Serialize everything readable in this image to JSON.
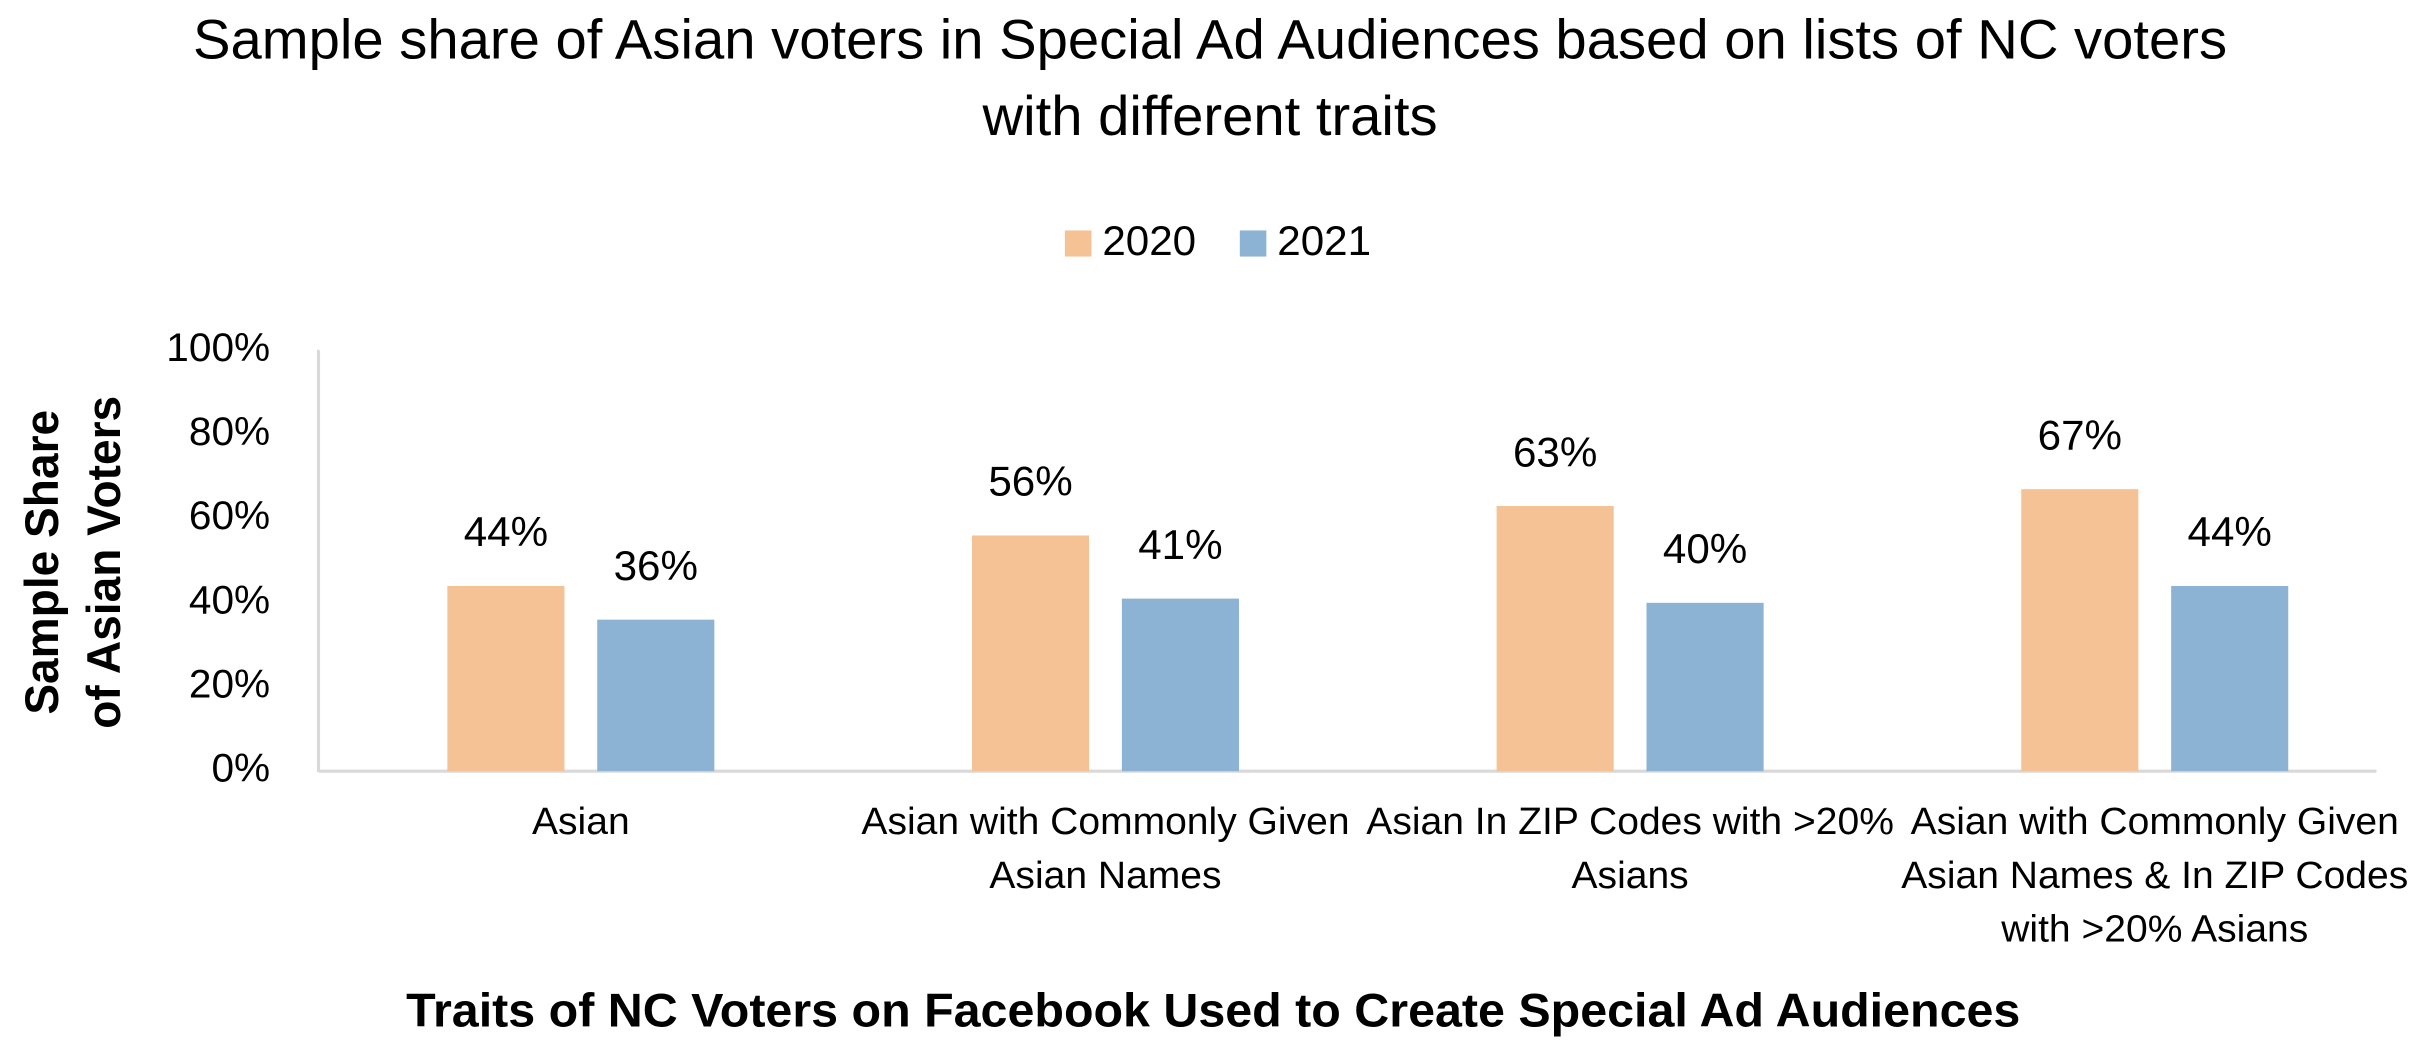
{
  "chart_data": {
    "type": "bar",
    "title": "Sample share of Asian voters in Special Ad Audiences based on lists of NC voters with different traits",
    "x_label": "Traits of NC Voters on Facebook Used to Create Special Ad Audiences",
    "y_label": "Sample Share of Asian Voters",
    "categories": [
      "Asian",
      "Asian with Commonly Given Asian Names",
      "Asian In ZIP Codes with >20% Asians",
      "Asian with Commonly Given Asian Names & In ZIP Codes with >20% Asians"
    ],
    "series": [
      {
        "name": "2020",
        "color": "#f4c295",
        "values": [
          44,
          56,
          63,
          67
        ],
        "value_labels": [
          "44%",
          "56%",
          "63%",
          "67%"
        ]
      },
      {
        "name": "2021",
        "color": "#8db3d4",
        "values": [
          36,
          41,
          40,
          44
        ],
        "value_labels": [
          "36%",
          "41%",
          "40%",
          "44%"
        ]
      }
    ],
    "ylim": [
      0,
      100
    ],
    "yticks": [
      {
        "value": 0,
        "label": "0%"
      },
      {
        "value": 20,
        "label": "20%"
      },
      {
        "value": 40,
        "label": "40%"
      },
      {
        "value": 60,
        "label": "60%"
      },
      {
        "value": 80,
        "label": "80%"
      },
      {
        "value": 100,
        "label": "100%"
      }
    ],
    "grid": false,
    "legend": "top"
  }
}
